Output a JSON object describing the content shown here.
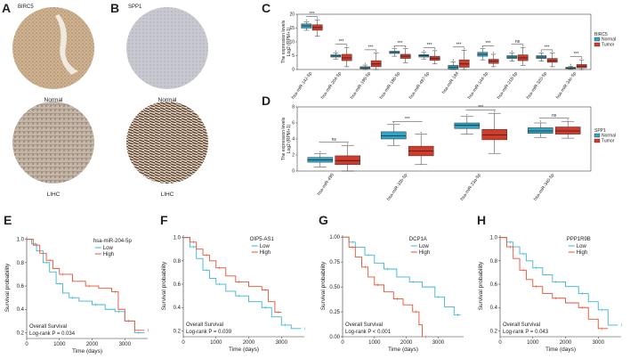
{
  "panels": {
    "A": {
      "letter": "A",
      "title": "BIRC5",
      "labels": [
        "Normal",
        "LIHC"
      ]
    },
    "B": {
      "letter": "B",
      "title": "SPP1",
      "labels": [
        "Normal",
        "LIHC"
      ]
    },
    "C": {
      "letter": "C",
      "legend_title": "BIRC5"
    },
    "D": {
      "letter": "D",
      "legend_title": "SPP1"
    },
    "E": {
      "letter": "E"
    },
    "F": {
      "letter": "F"
    },
    "G": {
      "letter": "G"
    },
    "H": {
      "letter": "H"
    }
  },
  "colors": {
    "normal": "#2fa6c8",
    "tumor": "#d23a2a",
    "low": "#3cb4d8",
    "high": "#e8502f"
  },
  "chart_data": [
    {
      "id": "C",
      "type": "box",
      "ylabel": "The expression levels Log2 (RPM+1)",
      "ylabel_line1": "The expression levels",
      "ylabel_line2": "Log2 (RPM+1)",
      "yticks": [
        "0",
        "5",
        "10",
        "15",
        "20"
      ],
      "ylim": [
        0,
        20
      ],
      "legend": [
        "Normal",
        "Tumor"
      ],
      "categories": [
        "hsa-miR-142-5p",
        "hsa-miR-204-5p",
        "hsa-miR-195-5p",
        "hsa-miR-186-5p",
        "hsa-miR-497-5p",
        "hsa-miR-184",
        "hsa-miR-144-3p",
        "hsa-miR-218-5p",
        "hsa-miR-320-5p",
        "hsa-miR-34c-5p"
      ],
      "significance": [
        "***",
        "***",
        "***",
        "***",
        "***",
        "***",
        "***",
        "ns",
        "***",
        "***"
      ],
      "normal": [
        [
          14.2,
          15,
          15.8,
          16.5,
          17.2
        ],
        [
          3.8,
          4.5,
          4.9,
          5.3,
          6
        ],
        [
          0,
          0.3,
          0.6,
          1,
          1.6
        ],
        [
          4.8,
          5.8,
          6.2,
          6.6,
          7.5
        ],
        [
          3.8,
          4.5,
          5,
          5.4,
          6.2
        ],
        [
          0,
          0.2,
          0.8,
          1.5,
          2.8
        ],
        [
          3.5,
          4.8,
          5.5,
          6.2,
          7.5
        ],
        [
          3,
          4,
          4.5,
          5,
          6
        ],
        [
          3,
          4,
          4.5,
          5,
          6
        ],
        [
          0,
          0.3,
          0.5,
          0.8,
          1.2
        ]
      ],
      "tumor": [
        [
          12,
          14.2,
          15.2,
          16.2,
          18
        ],
        [
          1,
          3.2,
          4.2,
          5.5,
          8
        ],
        [
          0,
          1,
          2,
          3.2,
          6
        ],
        [
          2.5,
          4,
          4.8,
          5.5,
          7.5
        ],
        [
          2,
          3.3,
          4,
          4.8,
          6.8
        ],
        [
          0,
          0.8,
          2,
          3.5,
          7
        ],
        [
          1,
          2.2,
          3,
          3.7,
          5.5
        ],
        [
          1.5,
          3.2,
          4.2,
          5.3,
          8
        ],
        [
          1,
          2.6,
          3.2,
          4,
          6
        ],
        [
          0,
          0.6,
          1.2,
          1.8,
          3.5
        ]
      ]
    },
    {
      "id": "D",
      "type": "box",
      "ylabel": "The expression levels Log2 (RPM+1)",
      "ylabel_line1": "The expression levels",
      "ylabel_line2": "Log2 (RPM+1)",
      "yticks": [
        "0",
        "2",
        "4",
        "6",
        "8"
      ],
      "ylim": [
        0,
        8
      ],
      "legend": [
        "Normal",
        "Tumor"
      ],
      "categories": [
        "hsa-miR-495",
        "hsa-miR-33b-5p",
        "hsa-miR-23a-5p",
        "hsa-miR-340-5p"
      ],
      "significance": [
        "ns",
        "***",
        "***",
        "ns"
      ],
      "normal": [
        [
          0.5,
          1.1,
          1.4,
          1.7,
          2.2
        ],
        [
          3.2,
          4,
          4.4,
          4.9,
          5.8
        ],
        [
          4.6,
          5.3,
          5.7,
          6,
          6.8
        ],
        [
          4.2,
          4.7,
          5,
          5.4,
          6
        ]
      ],
      "tumor": [
        [
          0,
          0.8,
          1.3,
          1.9,
          3.2
        ],
        [
          0.8,
          1.9,
          2.5,
          3.1,
          4.6
        ],
        [
          2.2,
          3.9,
          4.5,
          5.2,
          7.2
        ],
        [
          4.1,
          4.6,
          5,
          5.5,
          6.2
        ]
      ]
    },
    {
      "id": "E",
      "type": "km",
      "title": "hsa-miR-204-5p",
      "xlabel": "Time (days)",
      "ylabel": "Survival probability",
      "xticks": [
        "0",
        "1000",
        "2000",
        "3000"
      ],
      "yticks": [
        "0.2",
        "0.4",
        "0.6",
        "0.8",
        "1.0"
      ],
      "xlim": [
        0,
        3700
      ],
      "ylim": [
        0.15,
        1.02
      ],
      "legend": [
        "Low",
        "High"
      ],
      "stat_line1": "Overall Survival",
      "stat_line2_prefix": "Log-rank ",
      "p_value": "P = 0.034",
      "low": [
        [
          0,
          1
        ],
        [
          150,
          0.96
        ],
        [
          300,
          0.9
        ],
        [
          500,
          0.8
        ],
        [
          700,
          0.72
        ],
        [
          900,
          0.62
        ],
        [
          1100,
          0.54
        ],
        [
          1300,
          0.5
        ],
        [
          1600,
          0.47
        ],
        [
          2000,
          0.44
        ],
        [
          2400,
          0.4
        ],
        [
          2700,
          0.38
        ],
        [
          3000,
          0.3
        ],
        [
          3300,
          0.2
        ],
        [
          3600,
          0.2
        ]
      ],
      "high": [
        [
          0,
          1
        ],
        [
          200,
          0.95
        ],
        [
          400,
          0.88
        ],
        [
          600,
          0.82
        ],
        [
          800,
          0.75
        ],
        [
          1000,
          0.7
        ],
        [
          1400,
          0.64
        ],
        [
          1800,
          0.6
        ],
        [
          2200,
          0.58
        ],
        [
          2600,
          0.55
        ],
        [
          2800,
          0.4
        ],
        [
          3000,
          0.3
        ],
        [
          3300,
          0.22
        ],
        [
          3600,
          0.22
        ]
      ]
    },
    {
      "id": "F",
      "type": "km",
      "title": "OIP5-AS1",
      "xlabel": "Time (days)",
      "ylabel": "Survival probability",
      "xticks": [
        "0",
        "1000",
        "2000",
        "3000"
      ],
      "yticks": [
        "0.2",
        "0.4",
        "0.6",
        "0.8",
        "1.0"
      ],
      "xlim": [
        0,
        3700
      ],
      "ylim": [
        0.15,
        1.02
      ],
      "legend": [
        "Low",
        "High"
      ],
      "stat_line1": "Overall Survival",
      "stat_line2_prefix": "Log-rank ",
      "p_value": "P = 0.039",
      "low": [
        [
          0,
          1
        ],
        [
          200,
          0.92
        ],
        [
          400,
          0.82
        ],
        [
          600,
          0.72
        ],
        [
          800,
          0.65
        ],
        [
          1000,
          0.6
        ],
        [
          1300,
          0.54
        ],
        [
          1600,
          0.5
        ],
        [
          2000,
          0.45
        ],
        [
          2400,
          0.4
        ],
        [
          2700,
          0.32
        ],
        [
          3000,
          0.25
        ],
        [
          3300,
          0.22
        ],
        [
          3600,
          0.22
        ]
      ],
      "high": [
        [
          0,
          1
        ],
        [
          200,
          0.96
        ],
        [
          400,
          0.9
        ],
        [
          600,
          0.85
        ],
        [
          800,
          0.8
        ],
        [
          1000,
          0.74
        ],
        [
          1300,
          0.67
        ],
        [
          1600,
          0.62
        ],
        [
          2000,
          0.58
        ],
        [
          2400,
          0.55
        ],
        [
          2600,
          0.45
        ],
        [
          2800,
          0.36
        ],
        [
          3000,
          0.36
        ]
      ]
    },
    {
      "id": "G",
      "type": "km",
      "title": "DCP1A",
      "xlabel": "Time (days)",
      "ylabel": "Survival probability",
      "xticks": [
        "0",
        "1000",
        "2000",
        "3000"
      ],
      "yticks": [
        "0.00",
        "0.25",
        "0.50",
        "0.75",
        "1.00"
      ],
      "xlim": [
        0,
        3800
      ],
      "ylim": [
        0,
        1.02
      ],
      "legend": [
        "Low",
        "High"
      ],
      "stat_line1": "Overall Survival",
      "stat_line2_prefix": "Log-rank ",
      "p_value": "P < 0.001",
      "low": [
        [
          0,
          1
        ],
        [
          200,
          0.95
        ],
        [
          400,
          0.9
        ],
        [
          700,
          0.82
        ],
        [
          1000,
          0.74
        ],
        [
          1300,
          0.68
        ],
        [
          1700,
          0.6
        ],
        [
          2100,
          0.55
        ],
        [
          2500,
          0.5
        ],
        [
          2900,
          0.4
        ],
        [
          3200,
          0.3
        ],
        [
          3500,
          0.22
        ],
        [
          3700,
          0.22
        ]
      ],
      "high": [
        [
          0,
          1
        ],
        [
          200,
          0.9
        ],
        [
          400,
          0.8
        ],
        [
          600,
          0.7
        ],
        [
          800,
          0.6
        ],
        [
          1000,
          0.52
        ],
        [
          1300,
          0.45
        ],
        [
          1600,
          0.38
        ],
        [
          1900,
          0.32
        ],
        [
          2200,
          0.25
        ],
        [
          2400,
          0.12
        ],
        [
          2500,
          0
        ]
      ]
    },
    {
      "id": "H",
      "type": "km",
      "title": "PPP1R9B",
      "xlabel": "Time (days)",
      "ylabel": "Survival probability",
      "xticks": [
        "0",
        "1000",
        "2000",
        "3000"
      ],
      "yticks": [
        "0.2",
        "0.4",
        "0.6",
        "0.8",
        "1.0"
      ],
      "xlim": [
        0,
        3700
      ],
      "ylim": [
        0.15,
        1.02
      ],
      "legend": [
        "Low",
        "High"
      ],
      "stat_line1": "Overall Survival",
      "stat_line2_prefix": "Log-rank ",
      "p_value": "P = 0.043",
      "low": [
        [
          0,
          1
        ],
        [
          200,
          0.96
        ],
        [
          400,
          0.92
        ],
        [
          600,
          0.86
        ],
        [
          800,
          0.8
        ],
        [
          1000,
          0.74
        ],
        [
          1300,
          0.68
        ],
        [
          1600,
          0.62
        ],
        [
          2000,
          0.58
        ],
        [
          2400,
          0.52
        ],
        [
          2700,
          0.45
        ],
        [
          3000,
          0.38
        ],
        [
          3300,
          0.25
        ],
        [
          3600,
          0.25
        ]
      ],
      "high": [
        [
          0,
          1
        ],
        [
          200,
          0.92
        ],
        [
          400,
          0.82
        ],
        [
          600,
          0.72
        ],
        [
          800,
          0.64
        ],
        [
          1000,
          0.58
        ],
        [
          1300,
          0.52
        ],
        [
          1600,
          0.48
        ],
        [
          2000,
          0.44
        ],
        [
          2400,
          0.4
        ],
        [
          2700,
          0.3
        ],
        [
          3000,
          0.22
        ],
        [
          3300,
          0.22
        ]
      ]
    }
  ]
}
